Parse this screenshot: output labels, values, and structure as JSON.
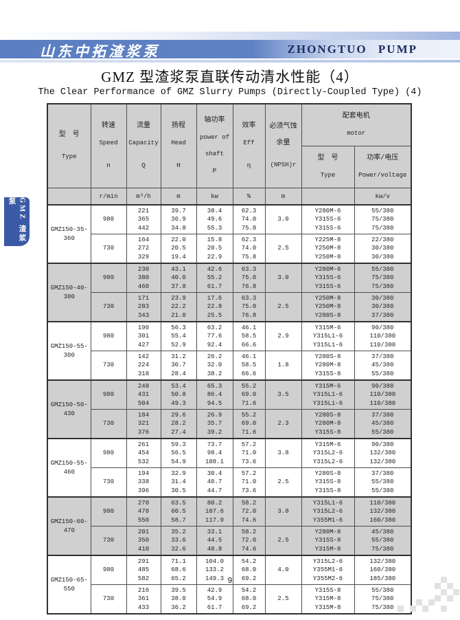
{
  "page": {
    "brand_cn": "山东中拓渣浆泵",
    "brand_en": "ZHONGTUO  PUMP",
    "title_cn": "GMZ 型渣浆泵直联传动清水性能（4）",
    "title_en": "The Clear Performance of GMZ Slurry Pumps (Directly-Coupled Type) (4)",
    "side_tab": "GMZ 渣浆泵",
    "page_number": "9"
  },
  "colors": {
    "bar_blue": "#5b7ec2",
    "tab_blue": "#3b5aa6",
    "brand_navy": "#1c2c5e",
    "stripe_gray": "#d0d0d0"
  },
  "table": {
    "headers": {
      "type_cn": "型　号",
      "type_en": "Type",
      "speed_cn": "转速",
      "speed_en": "Speed",
      "speed_sym": "n",
      "capacity_cn": "流量",
      "capacity_en": "Capacity",
      "capacity_sym": "Q",
      "head_cn": "扬程",
      "head_en": "Head",
      "head_sym": "H",
      "power_cn": "轴功率",
      "power_en1": "power of",
      "power_en2": "shaft",
      "power_sym": "P",
      "eff_cn": "效率",
      "eff_en": "Eff",
      "eff_sym": "η",
      "npsh_cn1": "必须气蚀",
      "npsh_cn2": "余量",
      "npsh_en": "(NPSH)r",
      "motor_cn": "配套电机",
      "motor_en": "motor",
      "motor_type_cn": "型　号",
      "motor_type_en": "Type",
      "motor_power_cn": "功率/电压",
      "motor_power_en": "Power/voltage"
    },
    "units": {
      "speed": "r/min",
      "capacity": "m³/h",
      "head": "m",
      "power": "kw",
      "eff": "%",
      "npsh": "m",
      "motor_power": "kw/v"
    },
    "groups": [
      {
        "model": "GMZ150-35-360",
        "rows": [
          {
            "speed": "980",
            "q": [
              "221",
              "365",
              "442"
            ],
            "h": [
              "39.7",
              "36.9",
              "34.8"
            ],
            "p": [
              "38.4",
              "49.6",
              "55.3"
            ],
            "eff": [
              "62.3",
              "74.0",
              "75.8"
            ],
            "npsh": "3.0",
            "motor": [
              "Y280M-6",
              "Y315S-6",
              "Y315S-6"
            ],
            "power_voltage": [
              "55/380",
              "75/380",
              "75/380"
            ]
          },
          {
            "speed": "730",
            "q": [
              "164",
              "272",
              "329"
            ],
            "h": [
              "22.0",
              "20.5",
              "19.4"
            ],
            "p": [
              "15.8",
              "20.5",
              "22.9"
            ],
            "eff": [
              "62.3",
              "74.0",
              "75.8"
            ],
            "npsh": "2.5",
            "motor": [
              "Y225M-8",
              "Y250M-8",
              "Y250M-8"
            ],
            "power_voltage": [
              "22/380",
              "30/380",
              "30/380"
            ]
          }
        ]
      },
      {
        "model": "GMZ150-40-380",
        "rows": [
          {
            "speed": "980",
            "q": [
              "230",
              "380",
              "460"
            ],
            "h": [
              "43.1",
              "40.0",
              "37.8"
            ],
            "p": [
              "42.6",
              "55.2",
              "61.7"
            ],
            "eff": [
              "63.3",
              "75.0",
              "76.8"
            ],
            "npsh": "3.0",
            "motor": [
              "Y280M-6",
              "Y315S-6",
              "Y315S-6"
            ],
            "power_voltage": [
              "55/380",
              "75/380",
              "75/380"
            ]
          },
          {
            "speed": "730",
            "q": [
              "171",
              "283",
              "343"
            ],
            "h": [
              "23.9",
              "22.2",
              "21.0"
            ],
            "p": [
              "17.6",
              "22.8",
              "25.5"
            ],
            "eff": [
              "63.3",
              "75.0",
              "76.8"
            ],
            "npsh": "2.5",
            "motor": [
              "Y250M-8",
              "Y250M-8",
              "Y280S-8"
            ],
            "power_voltage": [
              "30/380",
              "30/380",
              "37/380"
            ]
          }
        ]
      },
      {
        "model": "GMZ150-55-300",
        "rows": [
          {
            "speed": "980",
            "q": [
              "190",
              "301",
              "427"
            ],
            "h": [
              "56.3",
              "55.4",
              "52.9"
            ],
            "p": [
              "63.2",
              "77.6",
              "92.4"
            ],
            "eff": [
              "46.1",
              "58.5",
              "66.6"
            ],
            "npsh": "2.9",
            "motor": [
              "Y315M-6",
              "Y315L1-6",
              "Y315L1-6"
            ],
            "power_voltage": [
              "90/380",
              "110/380",
              "110/380"
            ]
          },
          {
            "speed": "730",
            "q": [
              "142",
              "224",
              "318"
            ],
            "h": [
              "31.2",
              "30.7",
              "28.4"
            ],
            "p": [
              "26.2",
              "32.0",
              "38.2"
            ],
            "eff": [
              "46.1",
              "58.5",
              "66.6"
            ],
            "npsh": "1.8",
            "motor": [
              "Y280S-8",
              "Y280M-8",
              "Y315S-8"
            ],
            "power_voltage": [
              "37/380",
              "45/380",
              "55/380"
            ]
          }
        ]
      },
      {
        "model": "GMZ150-50-430",
        "rows": [
          {
            "speed": "980",
            "q": [
              "248",
              "431",
              "504"
            ],
            "h": [
              "53.4",
              "50.8",
              "49.3"
            ],
            "p": [
              "65.3",
              "86.4",
              "94.5"
            ],
            "eff": [
              "55.2",
              "69.0",
              "71.6"
            ],
            "npsh": "3.5",
            "motor": [
              "Y315M-6",
              "Y315L1-6",
              "Y315L1-6"
            ],
            "power_voltage": [
              "90/380",
              "110/380",
              "110/380"
            ]
          },
          {
            "speed": "730",
            "q": [
              "184",
              "321",
              "376"
            ],
            "h": [
              "29.6",
              "28.2",
              "27.4"
            ],
            "p": [
              "26.9",
              "35.7",
              "39.2"
            ],
            "eff": [
              "55.2",
              "69.0",
              "71.6"
            ],
            "npsh": "2.3",
            "motor": [
              "Y280S-8",
              "Y280M-8",
              "Y315S-8"
            ],
            "power_voltage": [
              "37/380",
              "45/380",
              "55/380"
            ]
          }
        ]
      },
      {
        "model": "GMZ150-55-460",
        "rows": [
          {
            "speed": "980",
            "q": [
              "261",
              "454",
              "532"
            ],
            "h": [
              "59.3",
              "56.5",
              "54.9"
            ],
            "p": [
              "73.7",
              "98.4",
              "108.1"
            ],
            "eff": [
              "57.2",
              "71.0",
              "73.6"
            ],
            "npsh": "3.8",
            "motor": [
              "Y315M-6",
              "Y315L2-6",
              "Y315L2-6"
            ],
            "power_voltage": [
              "90/380",
              "132/380",
              "132/380"
            ]
          },
          {
            "speed": "730",
            "q": [
              "194",
              "338",
              "396"
            ],
            "h": [
              "32.9",
              "31.4",
              "30.5"
            ],
            "p": [
              "30.4",
              "40.7",
              "44.7"
            ],
            "eff": [
              "57.2",
              "71.0",
              "73.6"
            ],
            "npsh": "2.5",
            "motor": [
              "Y280S-8",
              "Y315S-8",
              "Y315S-8"
            ],
            "power_voltage": [
              "37/380",
              "55/380",
              "55/380"
            ]
          }
        ]
      },
      {
        "model": "GMZ150-60-470",
        "rows": [
          {
            "speed": "980",
            "q": [
              "270",
              "470",
              "550"
            ],
            "h": [
              "63.5",
              "60.5",
              "58.7"
            ],
            "p": [
              "80.2",
              "107.6",
              "117.9"
            ],
            "eff": [
              "58.2",
              "72.0",
              "74.6"
            ],
            "npsh": "3.8",
            "motor": [
              "Y315L1-6",
              "Y315L2-6",
              "Y355M1-6"
            ],
            "power_voltage": [
              "110/380",
              "132/380",
              "160/380"
            ]
          },
          {
            "speed": "730",
            "q": [
              "201",
              "350",
              "410"
            ],
            "h": [
              "35.2",
              "33.6",
              "32.6"
            ],
            "p": [
              "33.1",
              "44.5",
              "48.8"
            ],
            "eff": [
              "58.2",
              "72.0",
              "74.6"
            ],
            "npsh": "2.5",
            "motor": [
              "Y280M-8",
              "Y315S-8",
              "Y315M-8"
            ],
            "power_voltage": [
              "45/380",
              "55/380",
              "75/380"
            ]
          }
        ]
      },
      {
        "model": "GMZ150-65-550",
        "rows": [
          {
            "speed": "980",
            "q": [
              "291",
              "485",
              "582"
            ],
            "h": [
              "71.1",
              "68.6",
              "65.2"
            ],
            "p": [
              "104.0",
              "133.2",
              "149.3"
            ],
            "eff": [
              "54.2",
              "68.0",
              "69.2"
            ],
            "npsh": "4.0",
            "motor": [
              "Y315L2-6",
              "Y355M1-6",
              "Y355M2-6"
            ],
            "power_voltage": [
              "132/380",
              "160/380",
              "185/380"
            ]
          },
          {
            "speed": "730",
            "q": [
              "216",
              "361",
              "433"
            ],
            "h": [
              "39.5",
              "38.0",
              "36.2"
            ],
            "p": [
              "42.9",
              "54.9",
              "61.7"
            ],
            "eff": [
              "54.2",
              "68.0",
              "69.2"
            ],
            "npsh": "2.5",
            "motor": [
              "Y315S-8",
              "Y315M-8",
              "Y315M-8"
            ],
            "power_voltage": [
              "55/380",
              "75/380",
              "75/380"
            ]
          }
        ]
      }
    ]
  }
}
